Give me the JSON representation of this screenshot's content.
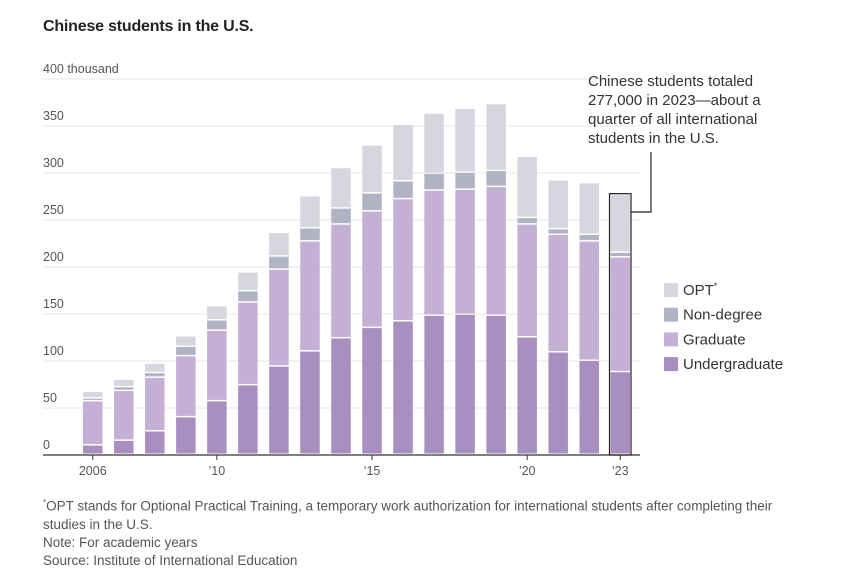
{
  "title": "Chinese students in the U.S.",
  "chart_data": {
    "type": "bar",
    "stacked": true,
    "y_unit_label": "400 thousand",
    "ylim": [
      0,
      400
    ],
    "y_ticks": [
      "0",
      "50",
      "100",
      "150",
      "200",
      "250",
      "300",
      "350"
    ],
    "x_tick_labels": [
      {
        "index": 0,
        "label": "2006"
      },
      {
        "index": 4,
        "label": "’10"
      },
      {
        "index": 9,
        "label": "’15"
      },
      {
        "index": 14,
        "label": "’20"
      },
      {
        "index": 17,
        "label": "’23"
      }
    ],
    "categories": [
      "2006",
      "2007",
      "2008",
      "2009",
      "2010",
      "2011",
      "2012",
      "2013",
      "2014",
      "2015",
      "2016",
      "2017",
      "2018",
      "2019",
      "2020",
      "2021",
      "2022",
      "2023"
    ],
    "series": [
      {
        "name": "Undergraduate",
        "color": "#a98fc0",
        "values": [
          10,
          15,
          25,
          40,
          57,
          74,
          94,
          110,
          124,
          135,
          142,
          148,
          149,
          148,
          125,
          109,
          100,
          88
        ]
      },
      {
        "name": "Graduate",
        "color": "#c5b0d5",
        "values": [
          47,
          53,
          57,
          65,
          75,
          88,
          103,
          117,
          121,
          124,
          130,
          133,
          133,
          137,
          120,
          125,
          127,
          122
        ]
      },
      {
        "name": "Non-degree",
        "color": "#b1b3c5",
        "values": [
          3,
          4,
          5,
          10,
          11,
          12,
          14,
          14,
          17,
          19,
          19,
          18,
          18,
          17,
          7,
          6,
          7,
          5
        ]
      },
      {
        "name": "OPT",
        "color": "#d5d6de",
        "values": [
          7,
          8,
          10,
          11,
          15,
          20,
          25,
          34,
          43,
          51,
          60,
          64,
          68,
          71,
          65,
          52,
          55,
          62
        ]
      }
    ],
    "legend_order": [
      "OPT",
      "Non-degree",
      "Graduate",
      "Undergraduate"
    ],
    "legend_placement": "right",
    "grid": true,
    "annotation": {
      "lines": [
        "Chinese students totaled",
        "277,000 in 2023—about a",
        "quarter of all international",
        "students in the U.S."
      ],
      "target_category": "2023"
    }
  },
  "footnotes": {
    "opt_line1": "OPT stands for Optional Practical Training, a temporary work authorization for international students after completing their",
    "opt_line2": "studies in the U.S.",
    "note": "Note: For academic years",
    "source": "Source: Institute of International Education"
  }
}
